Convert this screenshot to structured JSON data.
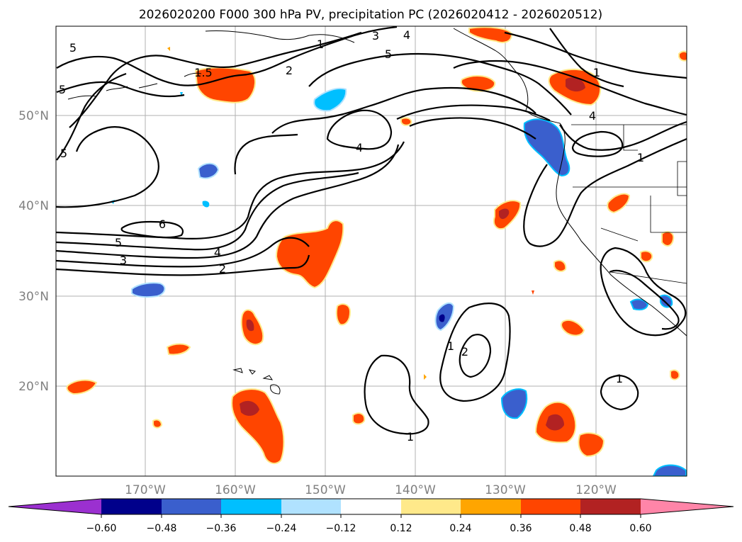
{
  "title": "2026020200 F000 300 hPa PV, precipitation PC (2026020412 - 2026020512)",
  "map": {
    "lon_range": [
      -180,
      -110
    ],
    "lat_range": [
      10,
      60
    ],
    "lat_labels": [
      "50°N",
      "40°N",
      "30°N",
      "20°N"
    ],
    "lon_labels": [
      "170°W",
      "160°W",
      "150°W",
      "140°W",
      "130°W",
      "120°W"
    ]
  },
  "contour_labels": [
    "5",
    "5",
    "5",
    "3",
    "4",
    "1",
    "2",
    "1.5",
    "5",
    "4",
    "4",
    "1",
    "1",
    "6",
    "5",
    "3",
    "4",
    "2",
    "1",
    "2",
    "1",
    "1"
  ],
  "colorbar": {
    "ticks": [
      "−0.60",
      "−0.48",
      "−0.36",
      "−0.24",
      "−0.12",
      "0.12",
      "0.24",
      "0.36",
      "0.48",
      "0.60"
    ],
    "colors": {
      "under": "#9b30d0",
      "c1": "#00008b",
      "c2": "#3a5fcd",
      "c3": "#00bfff",
      "c4": "#b0e2ff",
      "c5": "#ffffff",
      "c6": "#ffe98a",
      "c7": "#ffa500",
      "c8": "#ff4500",
      "c9": "#b22222",
      "over": "#ff85a8"
    }
  }
}
